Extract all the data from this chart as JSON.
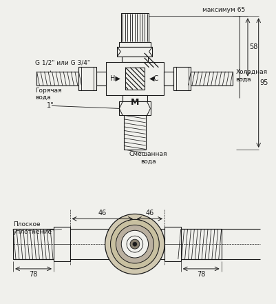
{
  "bg_color": "#f0f0ec",
  "line_color": "#1a1a1a",
  "text_color": "#1a1a1a",
  "labels": {
    "g_size": "G 1/2\" или G 3/4\"",
    "hot_water": "Горячая\nвода",
    "cold_water": "Холодная\nвода",
    "mixed_water": "Смешанная\nвода",
    "max65": "максимум 65",
    "dim58": "58",
    "dim95": "95",
    "dim1inch": "1\"",
    "flat_seal": "Плоское\nуплотнение",
    "dim46_l": "46",
    "dim46_r": "46",
    "dim78_l": "78",
    "dim78_r": "78"
  }
}
